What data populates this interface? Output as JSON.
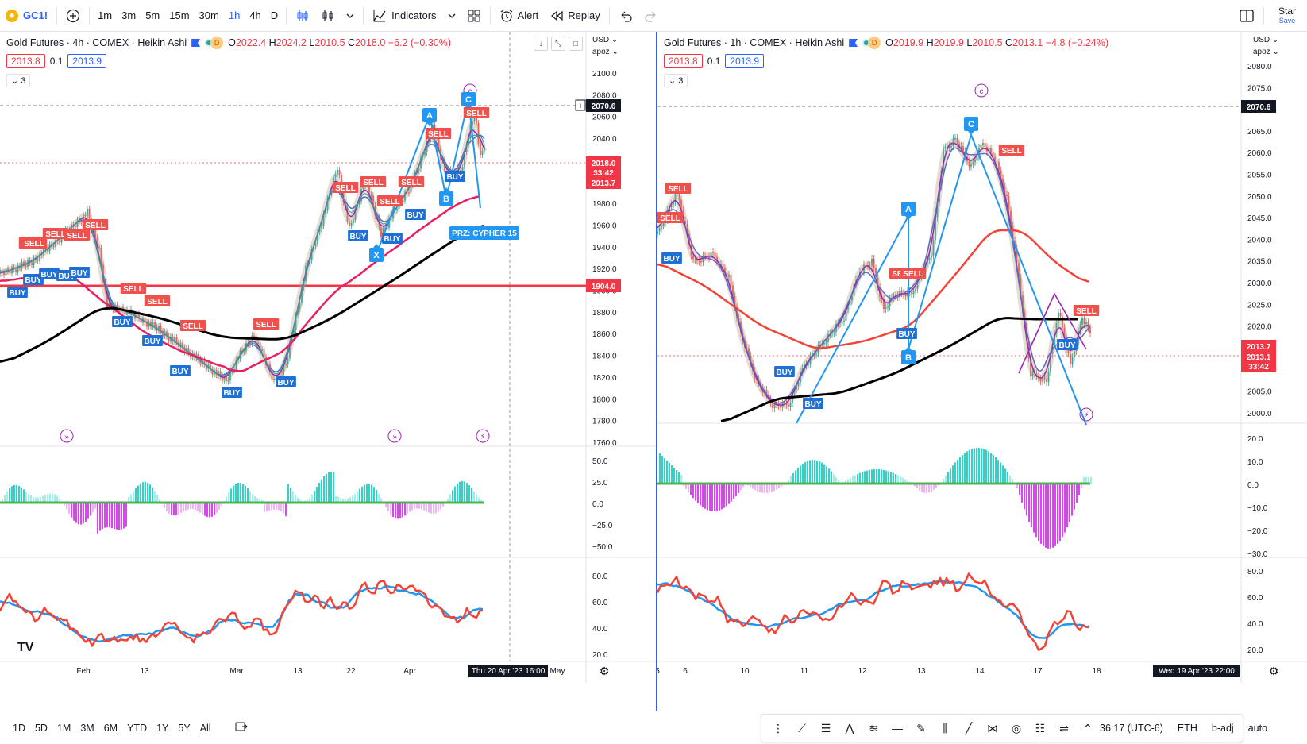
{
  "toolbar": {
    "symbol": "GC1!",
    "intervals": [
      "1m",
      "3m",
      "5m",
      "15m",
      "30m",
      "1h",
      "4h",
      "D"
    ],
    "active_interval": "1h",
    "indicators_label": "Indicators",
    "alert_label": "Alert",
    "replay_label": "Replay",
    "star_label": "Star",
    "save_label": "Save"
  },
  "left_chart": {
    "name": "Gold Futures · 4h · COMEX · Heikin Ashi",
    "ohlc": {
      "o": "2022.4",
      "h": "2024.2",
      "l": "2010.5",
      "c": "2018.0",
      "chg": "−6.2 (−0.30%)"
    },
    "bid": "2013.8",
    "spread": "0.1",
    "ask": "2013.9",
    "collapse": "3",
    "currency": "USD",
    "scale_mode": "apoz",
    "y_ticks": [
      "2100.0",
      "2080.0",
      "2060.0",
      "2040.0",
      "2020.0",
      "2000.0",
      "1980.0",
      "1960.0",
      "1940.0",
      "1920.0",
      "1900.0",
      "1880.0",
      "1860.0",
      "1840.0",
      "1820.0",
      "1800.0",
      "1780.0",
      "1760.0"
    ],
    "price_labels": {
      "dashed": "2070.6",
      "current": "2018.0",
      "countdown": "33:42",
      "low": "2013.7",
      "hline": "1904.0"
    },
    "osc1_ticks": [
      "50.0",
      "25.0",
      "0.0",
      "−25.0",
      "−50.0"
    ],
    "osc2_ticks": [
      "80.0",
      "60.0",
      "40.0",
      "20.0"
    ],
    "x_ticks": [
      "Feb",
      "13",
      "Mar",
      "13",
      "22",
      "Apr",
      "May"
    ],
    "crosshair_time": "Thu 20 Apr '23   16:00",
    "pattern_label": "PRZ: CYPHER 15",
    "pattern_points": [
      "X",
      "A",
      "B",
      "C"
    ],
    "wave_label": "c",
    "signals": {
      "buy": [
        "BUY",
        "BUY",
        "BUY",
        "BUY",
        "BUY",
        "BUY",
        "BUY",
        "BUY",
        "BUY",
        "BUY",
        "BUY",
        "BUY",
        "BUY",
        "BUY"
      ],
      "sell": [
        "SELL",
        "SELL",
        "SELL",
        "SELL",
        "SELL",
        "SELL",
        "SELL",
        "SELL",
        "SELL",
        "SELL",
        "SELL",
        "SELL",
        "SELL",
        "SELL",
        "SELL"
      ]
    }
  },
  "right_chart": {
    "name": "Gold Futures · 1h · COMEX · Heikin Ashi",
    "ohlc": {
      "o": "2019.9",
      "h": "2019.9",
      "l": "2010.5",
      "c": "2013.1",
      "chg": "−4.8 (−0.24%)"
    },
    "bid": "2013.8",
    "spread": "0.1",
    "ask": "2013.9",
    "collapse": "3",
    "currency": "USD",
    "scale_mode": "apoz",
    "y_ticks": [
      "2080.0",
      "2075.0",
      "2070.0",
      "2065.0",
      "2060.0",
      "2055.0",
      "2050.0",
      "2045.0",
      "2040.0",
      "2035.0",
      "2030.0",
      "2025.0",
      "2020.0",
      "2015.0",
      "2010.0",
      "2005.0",
      "2000.0"
    ],
    "price_labels": {
      "dashed": "2070.6",
      "bid": "2013.7",
      "current": "2013.1",
      "countdown": "33:42"
    },
    "osc1_ticks": [
      "20.0",
      "10.0",
      "0.0",
      "−10.0",
      "−20.0",
      "−30.0"
    ],
    "osc2_ticks": [
      "80.0",
      "60.0",
      "40.0",
      "20.0"
    ],
    "x_ticks": [
      "5",
      "6",
      "10",
      "11",
      "12",
      "13",
      "14",
      "17",
      "18"
    ],
    "crosshair_time": "Wed 19 Apr '23   22:00",
    "pattern_points": [
      "A",
      "B",
      "C"
    ],
    "wave_label": "c",
    "signals": {
      "buy": [
        "BUY",
        "BUY",
        "BUY",
        "BUY",
        "BUY"
      ],
      "sell": [
        "SELL",
        "SELL",
        "SELL",
        "SELL",
        "SELL",
        "SELL"
      ]
    }
  },
  "bottombar": {
    "ranges": [
      "1D",
      "5D",
      "1M",
      "3M",
      "6M",
      "YTD",
      "1Y",
      "5Y",
      "All"
    ],
    "clock": "36:17 (UTC-6)",
    "session": "ETH",
    "adj": "b-adj",
    "auto": "auto"
  },
  "colors": {
    "accent": "#2962ff",
    "buy": "#1e6fd6",
    "sell": "#f0514d",
    "red_line": "#f23645",
    "teal": "#2bd6c9",
    "magenta": "#e040fb"
  }
}
